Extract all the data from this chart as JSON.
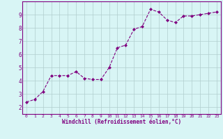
{
  "x": [
    0,
    1,
    2,
    3,
    4,
    5,
    6,
    7,
    8,
    9,
    10,
    11,
    12,
    13,
    14,
    15,
    16,
    17,
    18,
    19,
    20,
    21,
    22,
    23
  ],
  "y": [
    2.4,
    2.6,
    3.2,
    4.4,
    4.4,
    4.4,
    4.7,
    4.2,
    4.1,
    4.1,
    5.0,
    6.5,
    6.7,
    7.9,
    8.1,
    9.4,
    9.2,
    8.6,
    8.4,
    8.9,
    8.9,
    9.0,
    9.1,
    9.2
  ],
  "line_color": "#800080",
  "marker": "D",
  "marker_size": 2.0,
  "bg_color": "#d8f5f5",
  "grid_color": "#b0cece",
  "xlabel": "Windchill (Refroidissement éolien,°C)",
  "xlabel_color": "#800080",
  "tick_color": "#800080",
  "xlim": [
    -0.5,
    23.5
  ],
  "ylim": [
    1.5,
    10.0
  ],
  "yticks": [
    2,
    3,
    4,
    5,
    6,
    7,
    8,
    9
  ],
  "xticks": [
    0,
    1,
    2,
    3,
    4,
    5,
    6,
    7,
    8,
    9,
    10,
    11,
    12,
    13,
    14,
    15,
    16,
    17,
    18,
    19,
    20,
    21,
    22,
    23
  ],
  "spine_color": "#800080",
  "xtick_fontsize": 4.5,
  "ytick_fontsize": 5.5,
  "xlabel_fontsize": 5.5,
  "linewidth": 0.8
}
